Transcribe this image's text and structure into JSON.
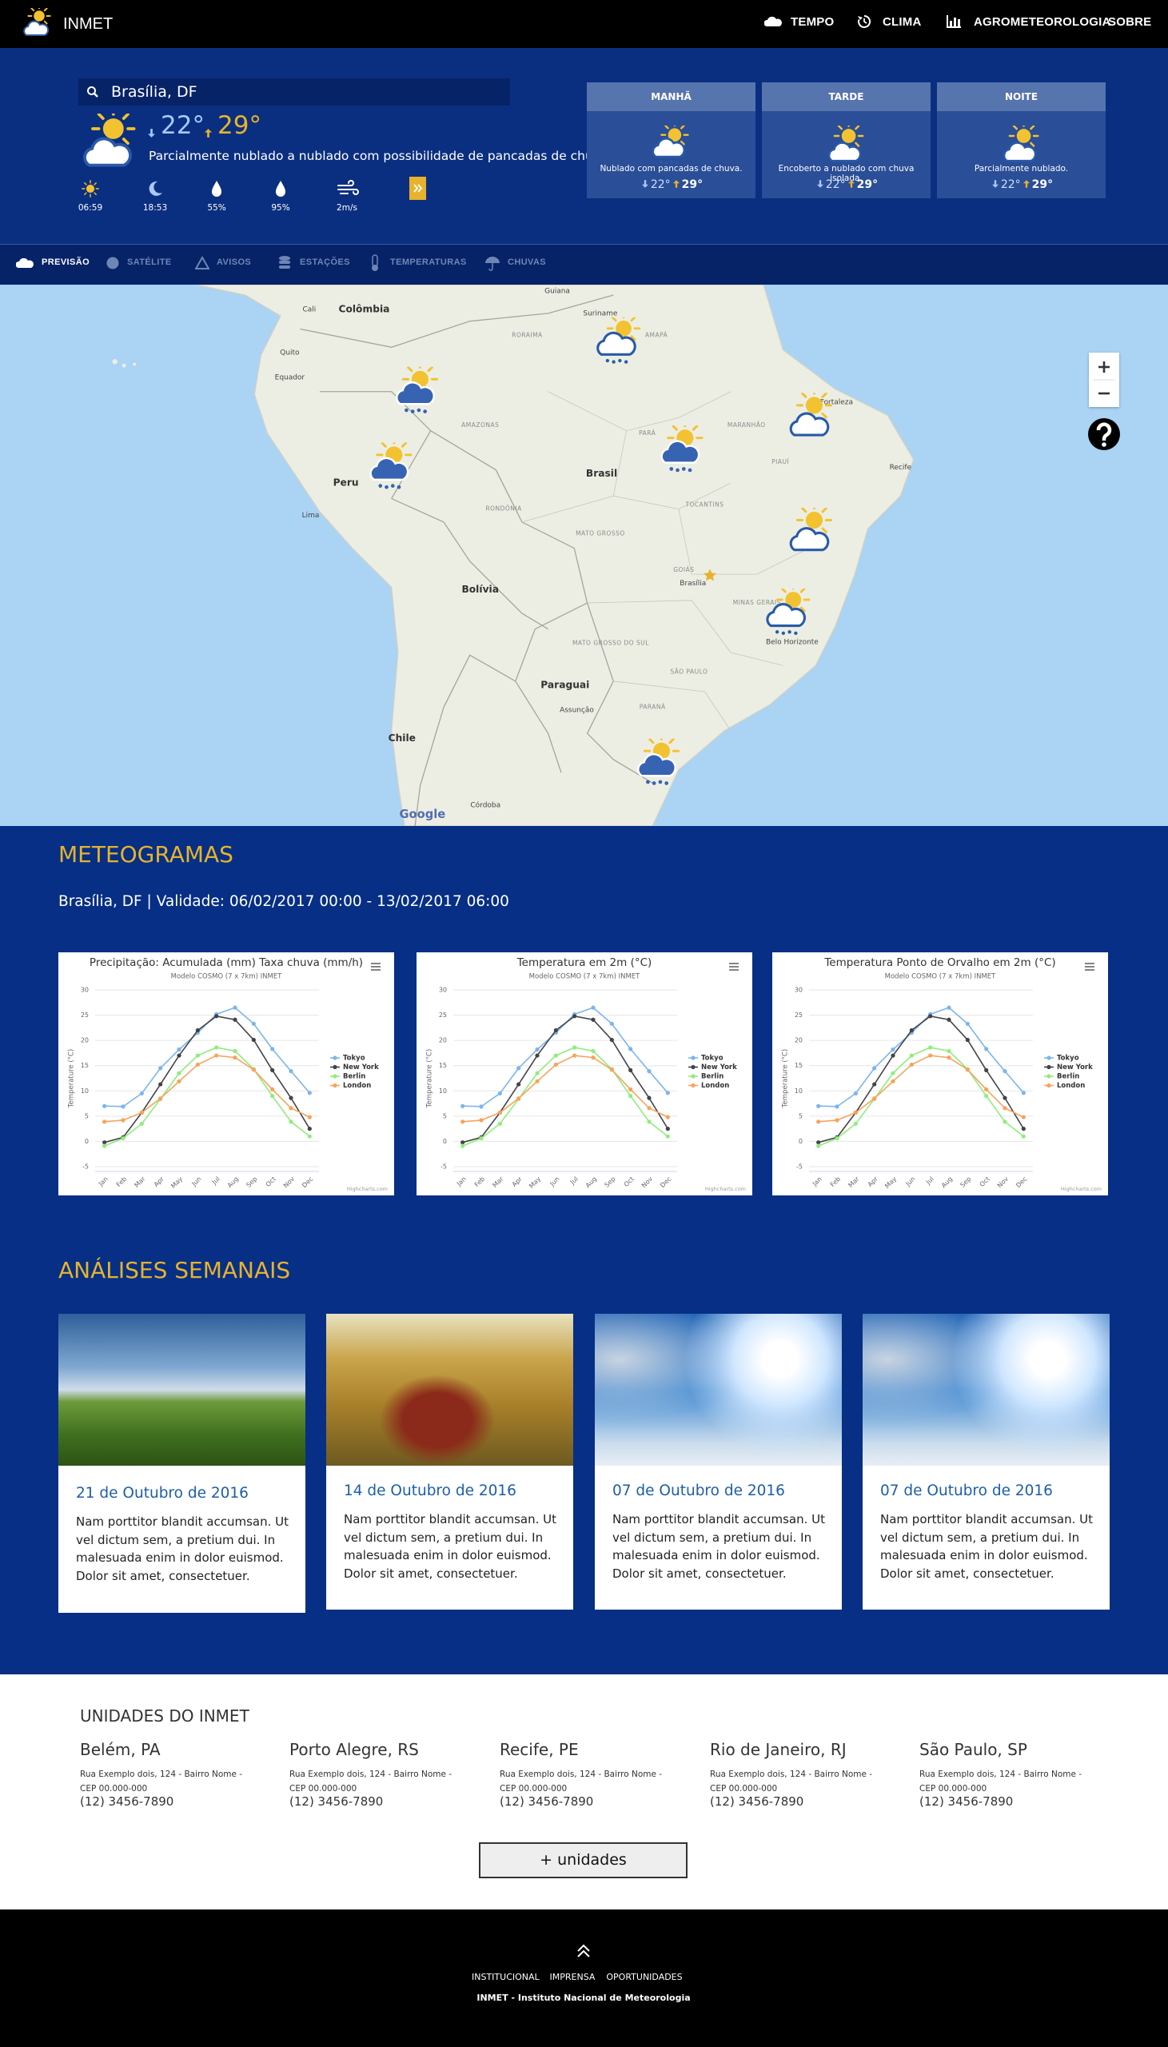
{
  "nav": {
    "brand": "INMET",
    "items": [
      "TEMPO",
      "CLIMA",
      "AGROMETEOROLOGIA",
      "SOBRE"
    ]
  },
  "header": {
    "location": "Brasília, DF",
    "min": "22°",
    "max": "29°",
    "description": "Parcialmente nublado a nublado com possibilidade de pancadas de chuva.",
    "stats": [
      "06:59",
      "18:53",
      "55%",
      "95%",
      "2m/s"
    ],
    "periods": [
      {
        "name": "MANHÃ",
        "text": "Nublado com pancadas de chuva.",
        "min": "22°",
        "max": "29°"
      },
      {
        "name": "TARDE",
        "text": "Encoberto a nublado com chuva isolada.",
        "min": "22°",
        "max": "29°"
      },
      {
        "name": "NOITE",
        "text": "Parcialmente nublado.",
        "min": "22°",
        "max": "29°"
      }
    ]
  },
  "tabs": [
    "PREVISÃO",
    "SATÉLITE",
    "AVISOS",
    "ESTAÇÕES",
    "TEMPERATURAS",
    "CHUVAS"
  ],
  "map": {
    "labels": [
      "Colômbia",
      "Cali",
      "Quito",
      "Equador",
      "Peru",
      "Lima",
      "Brasil",
      "Bolívia",
      "Paraguai",
      "Assunção",
      "Chile",
      "Córdoba",
      "Suriname",
      "Guiana",
      "Fortaleza",
      "Recife",
      "Brasília",
      "Belo Horizonte",
      "AMAZONAS",
      "PARÁ",
      "MATO GROSSO",
      "RONDÔNIA",
      "TOCANTINS",
      "GOIÁS",
      "MINAS GERAIS",
      "MATO GROSSO DO SUL",
      "SÃO PAULO",
      "PARANÁ",
      "RORAIMA",
      "AMAPÁ",
      "MARANHÃO",
      "PIAUÍ"
    ],
    "attribution": "Google"
  },
  "meteogramas": {
    "title": "METEOGRAMAS",
    "subtitle": "Brasília, DF | Validade: 06/02/2017 00:00 - 13/02/2017 06:00"
  },
  "chart_data": [
    {
      "type": "line",
      "title": "Precipitação: Acumulada (mm) Taxa chuva (mm/h)",
      "subtitle": "Modelo COSMO (7 x 7km) INMET",
      "y_axis_label": "Temperature (°C)",
      "credits": "Highcharts.com",
      "categories": [
        "Jan",
        "Feb",
        "Mar",
        "Apr",
        "May",
        "Jun",
        "Jul",
        "Aug",
        "Sep",
        "Oct",
        "Nov",
        "Dec"
      ],
      "series": [
        {
          "name": "Tokyo",
          "color": "#7cb5ec",
          "values": [
            7.0,
            6.9,
            9.5,
            14.5,
            18.2,
            21.5,
            25.2,
            26.5,
            23.3,
            18.3,
            13.9,
            9.6
          ]
        },
        {
          "name": "New York",
          "color": "#434348",
          "values": [
            -0.2,
            0.8,
            5.7,
            11.3,
            17.0,
            22.0,
            24.8,
            24.1,
            20.1,
            14.1,
            8.6,
            2.5
          ]
        },
        {
          "name": "Berlin",
          "color": "#90ed7d",
          "values": [
            -0.9,
            0.6,
            3.5,
            8.4,
            13.5,
            17.0,
            18.6,
            17.9,
            14.3,
            9.0,
            3.9,
            1.0
          ]
        },
        {
          "name": "London",
          "color": "#f7a35c",
          "values": [
            3.9,
            4.2,
            5.7,
            8.5,
            11.9,
            15.2,
            17.0,
            16.6,
            14.2,
            10.3,
            6.6,
            4.8
          ]
        }
      ],
      "ylim": [
        -5,
        30
      ],
      "yticks": [
        -5,
        0,
        5,
        10,
        15,
        20,
        25,
        30
      ],
      "grid": true,
      "legend": "right"
    },
    {
      "type": "line",
      "title": "Temperatura em 2m (°C)",
      "subtitle": "Modelo COSMO (7 x 7km) INMET",
      "y_axis_label": "Temperature (°C)",
      "credits": "Highcharts.com",
      "categories": [
        "Jan",
        "Feb",
        "Mar",
        "Apr",
        "May",
        "Jun",
        "Jul",
        "Aug",
        "Sep",
        "Oct",
        "Nov",
        "Dec"
      ],
      "series": [
        {
          "name": "Tokyo",
          "color": "#7cb5ec",
          "values": [
            7.0,
            6.9,
            9.5,
            14.5,
            18.2,
            21.5,
            25.2,
            26.5,
            23.3,
            18.3,
            13.9,
            9.6
          ]
        },
        {
          "name": "New York",
          "color": "#434348",
          "values": [
            -0.2,
            0.8,
            5.7,
            11.3,
            17.0,
            22.0,
            24.8,
            24.1,
            20.1,
            14.1,
            8.6,
            2.5
          ]
        },
        {
          "name": "Berlin",
          "color": "#90ed7d",
          "values": [
            -0.9,
            0.6,
            3.5,
            8.4,
            13.5,
            17.0,
            18.6,
            17.9,
            14.3,
            9.0,
            3.9,
            1.0
          ]
        },
        {
          "name": "London",
          "color": "#f7a35c",
          "values": [
            3.9,
            4.2,
            5.7,
            8.5,
            11.9,
            15.2,
            17.0,
            16.6,
            14.2,
            10.3,
            6.6,
            4.8
          ]
        }
      ],
      "ylim": [
        -5,
        30
      ],
      "yticks": [
        -5,
        0,
        5,
        10,
        15,
        20,
        25,
        30
      ],
      "grid": true,
      "legend": "right"
    },
    {
      "type": "line",
      "title": "Temperatura Ponto de Orvalho em 2m (°C)",
      "subtitle": "Modelo COSMO (7 x 7km) INMET",
      "y_axis_label": "Temperature (°C)",
      "credits": "Highcharts.com",
      "categories": [
        "Jan",
        "Feb",
        "Mar",
        "Apr",
        "May",
        "Jun",
        "Jul",
        "Aug",
        "Sep",
        "Oct",
        "Nov",
        "Dec"
      ],
      "series": [
        {
          "name": "Tokyo",
          "color": "#7cb5ec",
          "values": [
            7.0,
            6.9,
            9.5,
            14.5,
            18.2,
            21.5,
            25.2,
            26.5,
            23.3,
            18.3,
            13.9,
            9.6
          ]
        },
        {
          "name": "New York",
          "color": "#434348",
          "values": [
            -0.2,
            0.8,
            5.7,
            11.3,
            17.0,
            22.0,
            24.8,
            24.1,
            20.1,
            14.1,
            8.6,
            2.5
          ]
        },
        {
          "name": "Berlin",
          "color": "#90ed7d",
          "values": [
            -0.9,
            0.6,
            3.5,
            8.4,
            13.5,
            17.0,
            18.6,
            17.9,
            14.3,
            9.0,
            3.9,
            1.0
          ]
        },
        {
          "name": "London",
          "color": "#f7a35c",
          "values": [
            3.9,
            4.2,
            5.7,
            8.5,
            11.9,
            15.2,
            17.0,
            16.6,
            14.2,
            10.3,
            6.6,
            4.8
          ]
        }
      ],
      "ylim": [
        -5,
        30
      ],
      "yticks": [
        -5,
        0,
        5,
        10,
        15,
        20,
        25,
        30
      ],
      "grid": true,
      "legend": "right"
    }
  ],
  "analises": {
    "title": "ANÁLISES SEMANAIS",
    "cards": [
      {
        "date": "21 de Outubro de 2016",
        "text": "Nam porttitor blandit accumsan. Ut vel dictum sem, a pretium dui. In malesuada enim in dolor euismod. Dolor sit amet, consectetuer."
      },
      {
        "date": "14 de Outubro de 2016",
        "text": "Nam porttitor blandit accumsan. Ut vel dictum sem, a pretium dui. In malesuada enim in dolor euismod. Dolor sit amet, consectetuer."
      },
      {
        "date": "07 de Outubro de 2016",
        "text": "Nam porttitor blandit accumsan. Ut vel dictum sem, a pretium dui. In malesuada enim in dolor euismod. Dolor sit amet, consectetuer."
      },
      {
        "date": "07 de Outubro de 2016",
        "text": "Nam porttitor blandit accumsan. Ut vel dictum sem, a pretium dui. In malesuada enim in dolor euismod. Dolor sit amet, consectetuer."
      }
    ]
  },
  "unidades": {
    "title": "UNIDADES DO INMET",
    "items": [
      {
        "city": "Belém, PA",
        "address": "Rua Exemplo dois, 124 - Bairro Nome - CEP 00.000-000",
        "phone": "(12) 3456-7890"
      },
      {
        "city": "Porto Alegre, RS",
        "address": "Rua Exemplo dois, 124 - Bairro Nome - CEP 00.000-000",
        "phone": "(12) 3456-7890"
      },
      {
        "city": "Recife, PE",
        "address": "Rua Exemplo dois, 124 - Bairro Nome - CEP 00.000-000",
        "phone": "(12) 3456-7890"
      },
      {
        "city": "Rio de Janeiro, RJ",
        "address": "Rua Exemplo dois, 124 - Bairro Nome - CEP 00.000-000",
        "phone": "(12) 3456-7890"
      },
      {
        "city": "São Paulo, SP",
        "address": "Rua Exemplo dois, 124 - Bairro Nome - CEP 00.000-000",
        "phone": "(12) 3456-7890"
      }
    ],
    "button": "+ unidades"
  },
  "footer": {
    "links": [
      "INSTITUCIONAL",
      "IMPRENSA",
      "OPORTUNIDADES"
    ],
    "copyright": "INMET - Instituto Nacional de Meteorologia"
  }
}
